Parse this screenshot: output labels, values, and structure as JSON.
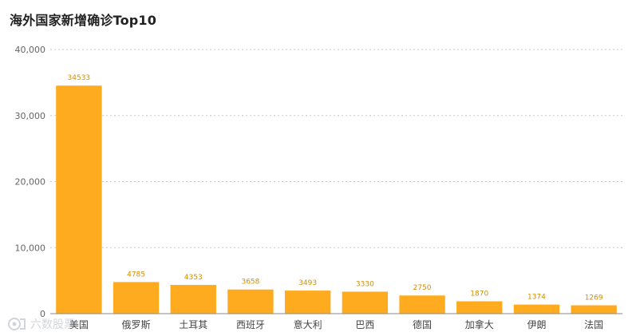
{
  "colors": {
    "bar": "#FFAB1F",
    "data_label": "#D28E00",
    "grid": "#C8C8C8",
    "axis": "#888888"
  },
  "watermark": {
    "icon": "logo-icon",
    "text": "六数股票"
  },
  "chart_data": {
    "type": "bar",
    "title": "海外国家新增确诊Top10",
    "categories": [
      "美国",
      "俄罗斯",
      "土耳其",
      "西班牙",
      "意大利",
      "巴西",
      "德国",
      "加拿大",
      "伊朗",
      "法国"
    ],
    "values": [
      34533,
      4785,
      4353,
      3658,
      3493,
      3330,
      2750,
      1870,
      1374,
      1269
    ],
    "ylim": [
      0,
      40000
    ],
    "yticks": [
      0,
      10000,
      20000,
      30000,
      40000
    ],
    "ytick_labels": [
      "0",
      "10,000",
      "20,000",
      "30,000",
      "40,000"
    ],
    "grid": true,
    "grid_style": "dotted",
    "data_labels": true,
    "xlabel": "",
    "ylabel": ""
  }
}
